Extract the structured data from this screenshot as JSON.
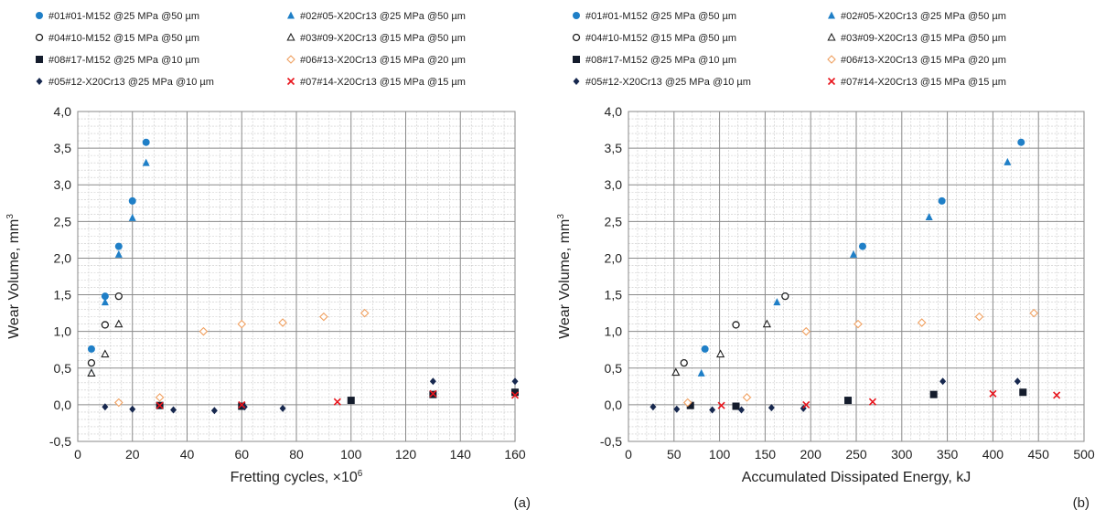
{
  "legend": [
    {
      "label": "#01#01-M152 @25 MPa @50 µm",
      "marker": "circle-filled",
      "color": "#1f7fc7"
    },
    {
      "label": "#02#05-X20Cr13 @25 MPa @50 µm",
      "marker": "triangle-filled",
      "color": "#1f7fc7"
    },
    {
      "label": "#04#10-M152 @15 MPa @50 µm",
      "marker": "circle-open",
      "color": "#222222"
    },
    {
      "label": "#03#09-X20Cr13 @15 MPa @50 µm",
      "marker": "triangle-open",
      "color": "#222222"
    },
    {
      "label": "#08#17-M152 @25 MPa @10 µm",
      "marker": "square-filled",
      "color": "#141c2c"
    },
    {
      "label": "#06#13-X20Cr13 @15 MPa @20 µm",
      "marker": "diamond-open",
      "color": "#f0a060"
    },
    {
      "label": "#05#12-X20Cr13 @25 MPa @10 µm",
      "marker": "diamond-filled",
      "color": "#17284f"
    },
    {
      "label": "#07#14-X20Cr13 @15 MPa @15 µm",
      "marker": "x",
      "color": "#e8141c"
    }
  ],
  "chart_data": [
    {
      "type": "scatter",
      "panel_label": "(a)",
      "xlabel": "Fretting cycles, ×10",
      "xlabel_sup": "6",
      "ylabel": "Wear Volume, mm",
      "ylabel_sup": "3",
      "xlim": [
        0,
        160
      ],
      "ylim": [
        -0.5,
        4.0
      ],
      "xticks": [
        "0",
        "20",
        "40",
        "60",
        "80",
        "100",
        "120",
        "140",
        "160"
      ],
      "yticks": [
        "-0,5",
        "0,0",
        "0,5",
        "1,0",
        "1,5",
        "2,0",
        "2,5",
        "3,0",
        "3,5",
        "4,0"
      ],
      "grid": true,
      "series": [
        {
          "name": "#01#01-M152 @25 MPa @50 µm",
          "points": [
            [
              5,
              0.76
            ],
            [
              10,
              1.48
            ],
            [
              15,
              2.16
            ],
            [
              20,
              2.78
            ],
            [
              25,
              3.58
            ]
          ]
        },
        {
          "name": "#02#05-X20Cr13 @25 MPa @50 µm",
          "points": [
            [
              5,
              0.44
            ],
            [
              10,
              1.4
            ],
            [
              15,
              2.05
            ],
            [
              20,
              2.55
            ],
            [
              25,
              3.3
            ]
          ]
        },
        {
          "name": "#04#10-M152 @15 MPa @50 µm",
          "points": [
            [
              5,
              0.57
            ],
            [
              10,
              1.09
            ],
            [
              15,
              1.48
            ]
          ]
        },
        {
          "name": "#03#09-X20Cr13 @15 MPa @50 µm",
          "points": [
            [
              5,
              0.43
            ],
            [
              10,
              0.69
            ],
            [
              15,
              1.1
            ]
          ]
        },
        {
          "name": "#08#17-M152 @25 MPa @10 µm",
          "points": [
            [
              30,
              -0.01
            ],
            [
              60,
              -0.02
            ],
            [
              100,
              0.06
            ],
            [
              130,
              0.14
            ],
            [
              160,
              0.17
            ]
          ]
        },
        {
          "name": "#06#13-X20Cr13 @15 MPa @20 µm",
          "points": [
            [
              15,
              0.03
            ],
            [
              30,
              0.1
            ],
            [
              46,
              1.0
            ],
            [
              60,
              1.1
            ],
            [
              75,
              1.12
            ],
            [
              90,
              1.2
            ],
            [
              105,
              1.25
            ]
          ]
        },
        {
          "name": "#05#12-X20Cr13 @25 MPa @10 µm",
          "points": [
            [
              10,
              -0.03
            ],
            [
              20,
              -0.06
            ],
            [
              35,
              -0.07
            ],
            [
              50,
              -0.08
            ],
            [
              61,
              -0.03
            ],
            [
              75,
              -0.05
            ],
            [
              130,
              0.32
            ],
            [
              160,
              0.32
            ]
          ]
        },
        {
          "name": "#07#14-X20Cr13 @15 MPa @15 µm",
          "points": [
            [
              30,
              -0.01
            ],
            [
              60,
              0.0
            ],
            [
              95,
              0.04
            ],
            [
              130,
              0.15
            ],
            [
              160,
              0.13
            ]
          ]
        }
      ]
    },
    {
      "type": "scatter",
      "panel_label": "(b)",
      "xlabel": "Accumulated Dissipated Energy, kJ",
      "ylabel": "Wear Volume, mm",
      "ylabel_sup": "3",
      "xlim": [
        0,
        500
      ],
      "ylim": [
        -0.5,
        4.0
      ],
      "xticks": [
        "0",
        "50",
        "100",
        "150",
        "200",
        "250",
        "300",
        "350",
        "400",
        "450",
        "500"
      ],
      "yticks": [
        "-0,5",
        "0,0",
        "0,5",
        "1,0",
        "1,5",
        "2,0",
        "2,5",
        "3,0",
        "3,5",
        "4,0"
      ],
      "grid": true,
      "series": [
        {
          "name": "#01#01-M152 @25 MPa @50 µm",
          "points": [
            [
              84,
              0.76
            ],
            [
              172,
              1.48
            ],
            [
              257,
              2.16
            ],
            [
              344,
              2.78
            ],
            [
              431,
              3.58
            ]
          ]
        },
        {
          "name": "#02#05-X20Cr13 @25 MPa @50 µm",
          "points": [
            [
              80,
              0.43
            ],
            [
              163,
              1.4
            ],
            [
              247,
              2.05
            ],
            [
              330,
              2.56
            ],
            [
              416,
              3.31
            ]
          ]
        },
        {
          "name": "#04#10-M152 @15 MPa @50 µm",
          "points": [
            [
              61,
              0.57
            ],
            [
              118,
              1.09
            ],
            [
              172,
              1.48
            ]
          ]
        },
        {
          "name": "#03#09-X20Cr13 @15 MPa @50 µm",
          "points": [
            [
              52,
              0.44
            ],
            [
              101,
              0.69
            ],
            [
              152,
              1.1
            ]
          ]
        },
        {
          "name": "#08#17-M152 @25 MPa @10 µm",
          "points": [
            [
              68,
              -0.01
            ],
            [
              118,
              -0.02
            ],
            [
              241,
              0.06
            ],
            [
              335,
              0.14
            ],
            [
              433,
              0.17
            ]
          ]
        },
        {
          "name": "#06#13-X20Cr13 @15 MPa @20 µm",
          "points": [
            [
              65,
              0.03
            ],
            [
              130,
              0.1
            ],
            [
              195,
              1.0
            ],
            [
              252,
              1.1
            ],
            [
              322,
              1.12
            ],
            [
              385,
              1.2
            ],
            [
              445,
              1.25
            ]
          ]
        },
        {
          "name": "#05#12-X20Cr13 @25 MPa @10 µm",
          "points": [
            [
              27,
              -0.03
            ],
            [
              53,
              -0.06
            ],
            [
              92,
              -0.07
            ],
            [
              124,
              -0.07
            ],
            [
              157,
              -0.04
            ],
            [
              192,
              -0.05
            ],
            [
              345,
              0.32
            ],
            [
              427,
              0.32
            ]
          ]
        },
        {
          "name": "#07#14-X20Cr13 @15 MPa @15 µm",
          "points": [
            [
              102,
              -0.01
            ],
            [
              195,
              0.0
            ],
            [
              268,
              0.04
            ],
            [
              400,
              0.15
            ],
            [
              470,
              0.13
            ]
          ]
        }
      ]
    }
  ]
}
